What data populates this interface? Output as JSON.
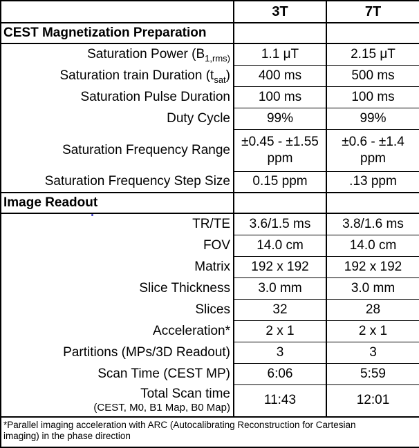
{
  "page": {
    "background": "#ffffff",
    "border_color": "#000000",
    "artifact_dot_color": "#3c3cc8"
  },
  "header": {
    "corner": "",
    "col_3t": "3T",
    "col_7t": "7T"
  },
  "section1": {
    "title": "CEST Magnetization Preparation"
  },
  "section2": {
    "title": "Image Readout"
  },
  "rows": {
    "sat_power": {
      "label_pre": "Saturation Power (B",
      "label_sub": "1,rms)",
      "label_post": "",
      "v3t": "1.1 μT",
      "v7t": "2.15 μT"
    },
    "sat_train": {
      "label_pre": "Saturation train Duration (t",
      "label_sub": "sat",
      "label_post": ")",
      "v3t": "400 ms",
      "v7t": "500 ms"
    },
    "sat_pulse": {
      "label": "Saturation Pulse Duration",
      "v3t": "100 ms",
      "v7t": "100 ms"
    },
    "duty_cycle": {
      "label": "Duty Cycle",
      "v3t": "99%",
      "v7t": "99%"
    },
    "freq_range": {
      "label": "Saturation Frequency Range",
      "v3t": "±0.45 - ±1.55 ppm",
      "v7t": "±0.6 - ±1.4 ppm"
    },
    "freq_step": {
      "label": "Saturation Frequency Step Size",
      "v3t": "0.15 ppm",
      "v7t": ".13 ppm"
    },
    "tr_te": {
      "label": "TR/TE",
      "v3t": "3.6/1.5 ms",
      "v7t": "3.8/1.6 ms"
    },
    "fov": {
      "label": "FOV",
      "v3t": "14.0 cm",
      "v7t": "14.0 cm"
    },
    "matrix": {
      "label": "Matrix",
      "v3t": "192 x 192",
      "v7t": "192 x 192"
    },
    "slice_thickness": {
      "label": "Slice Thickness",
      "v3t": "3.0 mm",
      "v7t": "3.0 mm"
    },
    "slices": {
      "label": "Slices",
      "v3t": "32",
      "v7t": "28"
    },
    "acceleration": {
      "label": "Acceleration*",
      "v3t": "2 x 1",
      "v7t": "2 x 1"
    },
    "partitions": {
      "label": "Partitions (MPs/3D Readout)",
      "v3t": "3",
      "v7t": "3"
    },
    "scan_time": {
      "label": "Scan Time (CEST MP)",
      "v3t": "6:06",
      "v7t": "5:59"
    },
    "total_scan": {
      "label": "Total Scan time",
      "label_sub": "(CEST, M0, B1 Map, B0 Map)",
      "v3t": "11:43",
      "v7t": "12:01"
    }
  },
  "footnote": {
    "line1": "*Parallel imaging acceleration with ARC (Autocalibrating Reconstruction for Cartesian",
    "line2": "imaging) in the phase direction"
  }
}
